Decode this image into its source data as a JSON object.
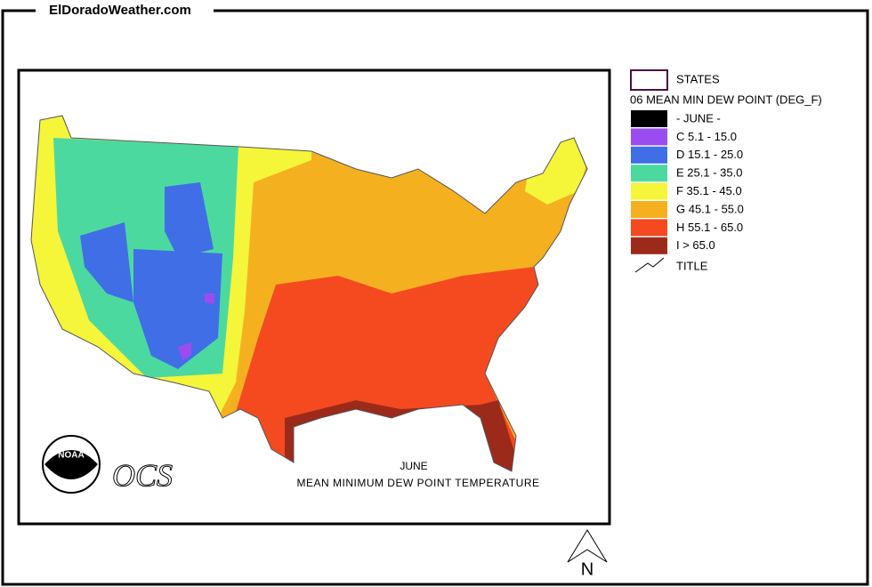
{
  "header": {
    "site": "ElDoradoWeather.com"
  },
  "legend": {
    "states_label": "STATES",
    "layer_title": "06 MEAN MIN DEW POINT (DEG_F)",
    "items": [
      {
        "label": "- JUNE -",
        "color": "#000000"
      },
      {
        "label": "C 5.1 - 15.0",
        "color": "#9b4cf0"
      },
      {
        "label": "D 15.1 - 25.0",
        "color": "#3f6ee6"
      },
      {
        "label": "E 25.1 - 35.0",
        "color": "#4cd9a0"
      },
      {
        "label": "F 35.1 - 45.0",
        "color": "#f5f53a"
      },
      {
        "label": "G 45.1 - 55.0",
        "color": "#f5b020"
      },
      {
        "label": "H 55.1 - 65.0",
        "color": "#f54a20"
      },
      {
        "label": "I > 65.0",
        "color": "#9c2a1a"
      }
    ],
    "title_label": "TITLE"
  },
  "map": {
    "caption_month": "JUNE",
    "caption_title": "MEAN MINIMUM DEW POINT TEMPERATURE",
    "agency": "OCS",
    "logo": "NOAA"
  },
  "compass": "N"
}
